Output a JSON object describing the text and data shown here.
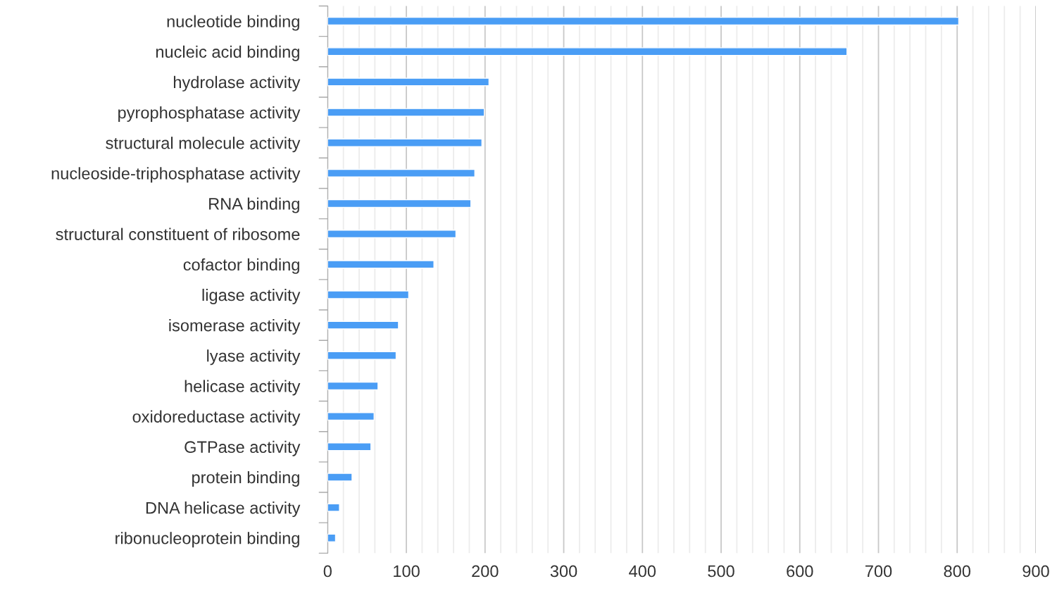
{
  "chart_data": {
    "type": "bar",
    "orientation": "horizontal",
    "categories": [
      "nucleotide binding",
      "nucleic acid binding",
      "hydrolase activity",
      "pyrophosphatase activity",
      "structural molecule activity",
      "nucleoside-triphosphatase activity",
      "RNA binding",
      "structural constituent of ribosome",
      "cofactor binding",
      "ligase activity",
      "isomerase activity",
      "lyase activity",
      "helicase activity",
      "oxidoreductase activity",
      "GTPase activity",
      "protein binding",
      "DNA helicase activity",
      "ribonucleoprotein binding"
    ],
    "values": [
      802,
      660,
      205,
      199,
      196,
      187,
      182,
      163,
      135,
      103,
      90,
      87,
      64,
      59,
      55,
      31,
      15,
      10
    ],
    "color": "#4a9df5",
    "xlim": [
      0,
      900
    ],
    "xticks": [
      0,
      {
        "value": 20,
        "label": null
      },
      {
        "value": 40,
        "label": null
      },
      {
        "value": 60,
        "label": null
      },
      {
        "value": 80,
        "label": null
      },
      100,
      {
        "value": 120,
        "label": null
      },
      {
        "value": 140,
        "label": null
      },
      {
        "value": 160,
        "label": null
      },
      {
        "value": 180,
        "label": null
      },
      200,
      {
        "value": 220,
        "label": null
      },
      {
        "value": 240,
        "label": null
      },
      {
        "value": 260,
        "label": null
      },
      {
        "value": 280,
        "label": null
      },
      300,
      {
        "value": 320,
        "label": null
      },
      {
        "value": 340,
        "label": null
      },
      {
        "value": 360,
        "label": null
      },
      {
        "value": 380,
        "label": null
      },
      400,
      {
        "value": 420,
        "label": null
      },
      {
        "value": 440,
        "label": null
      },
      {
        "value": 460,
        "label": null
      },
      {
        "value": 480,
        "label": null
      },
      500,
      {
        "value": 520,
        "label": null
      },
      {
        "value": 540,
        "label": null
      },
      {
        "value": 560,
        "label": null
      },
      {
        "value": 580,
        "label": null
      },
      600,
      {
        "value": 620,
        "label": null
      },
      {
        "value": 640,
        "label": null
      },
      {
        "value": 660,
        "label": null
      },
      {
        "value": 680,
        "label": null
      },
      700,
      {
        "value": 720,
        "label": null
      },
      {
        "value": 740,
        "label": null
      },
      {
        "value": 760,
        "label": null
      },
      {
        "value": 780,
        "label": null
      },
      800,
      {
        "value": 820,
        "label": null
      },
      {
        "value": 840,
        "label": null
      },
      {
        "value": 860,
        "label": null
      },
      {
        "value": 880,
        "label": null
      },
      900
    ],
    "grid": "x"
  }
}
